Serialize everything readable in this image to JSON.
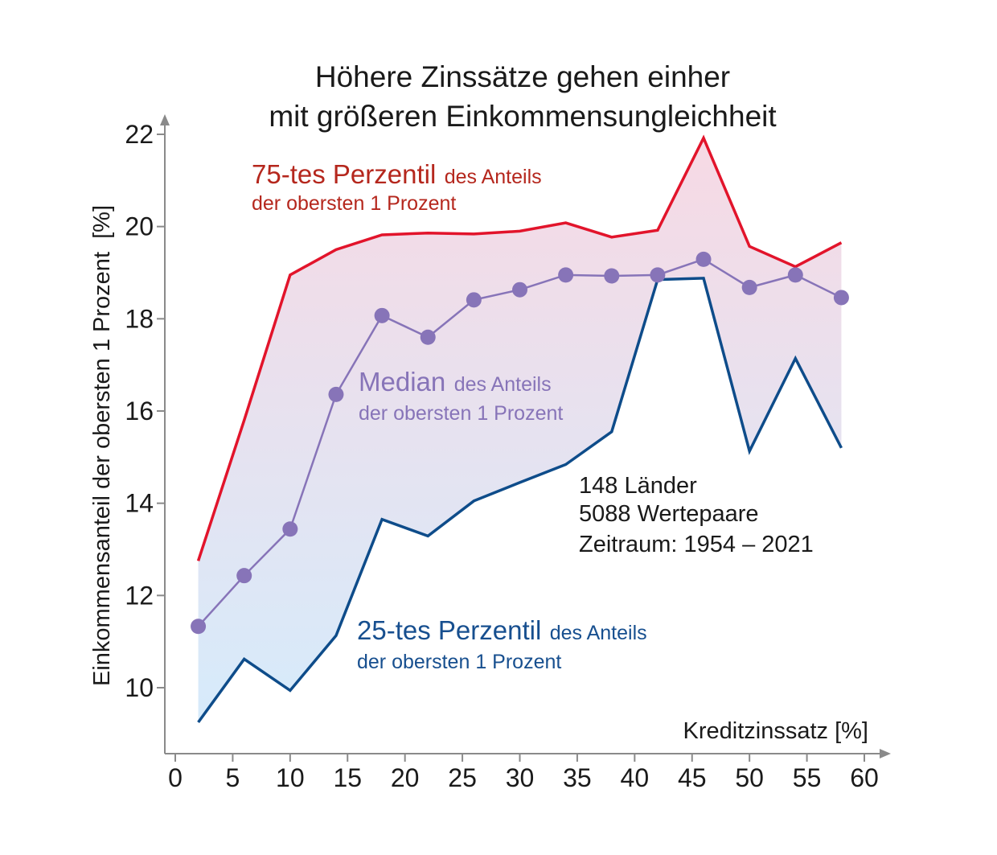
{
  "colors": {
    "p75": "#e2142b",
    "p75_text": "#b5271d",
    "median": "#8774b8",
    "p25": "#0e4c8a",
    "p25_text": "#174f8f",
    "axis": "#8a8a8a",
    "band_top": "#f7d9e4",
    "band_bottom": "#d6ebfb"
  },
  "chart_data": {
    "type": "line",
    "title_lines": [
      "Höhere Zinssätze gehen einher",
      "mit größeren Einkommensungleichheit"
    ],
    "xlabel": "Kreditzinssatz [%]",
    "ylabel": "Einkommensanteil der obersten 1 Prozent  [%]",
    "xlim": [
      0,
      60
    ],
    "ylim": [
      9,
      22
    ],
    "xticks": [
      0,
      5,
      10,
      15,
      20,
      25,
      30,
      35,
      40,
      45,
      50,
      55,
      60
    ],
    "yticks": [
      10,
      12,
      14,
      16,
      18,
      20,
      22
    ],
    "x": [
      2,
      6,
      10,
      14,
      18,
      22,
      26,
      30,
      34,
      38,
      42,
      46,
      50,
      54,
      58
    ],
    "series": [
      {
        "key": "p75",
        "name": "75-tes Perzentil des Anteils der obersten 1 Prozent",
        "values": [
          12.75,
          15.8,
          18.95,
          19.5,
          19.82,
          19.86,
          19.84,
          19.9,
          20.08,
          19.77,
          19.92,
          21.92,
          19.57,
          19.13,
          19.65
        ]
      },
      {
        "key": "median",
        "name": "Median des Anteils der obersten 1 Prozent",
        "values": [
          11.33,
          12.43,
          13.44,
          16.36,
          18.07,
          17.6,
          18.41,
          18.63,
          18.95,
          18.93,
          18.95,
          19.29,
          18.68,
          18.95,
          18.46
        ]
      },
      {
        "key": "p25",
        "name": "25-tes Perzentil des Anteils der obersten 1 Prozent",
        "values": [
          9.25,
          10.62,
          9.94,
          11.13,
          13.65,
          13.29,
          14.05,
          14.45,
          14.84,
          15.55,
          18.85,
          18.88,
          15.13,
          17.14,
          15.2
        ]
      }
    ]
  },
  "annotations": {
    "p75_main": "75-tes Perzentil",
    "p75_rest1": "des Anteils",
    "p75_rest2": "der obersten 1 Prozent",
    "median_main": "Median",
    "median_rest1": "des Anteils",
    "median_rest2": "der obersten 1 Prozent",
    "p25_main": "25-tes Perzentil",
    "p25_rest1": "des Anteils",
    "p25_rest2": "der obersten 1 Prozent",
    "info": [
      "148 Länder",
      "5088 Wertepaare",
      "Zeitraum: 1954 – 2021"
    ]
  }
}
